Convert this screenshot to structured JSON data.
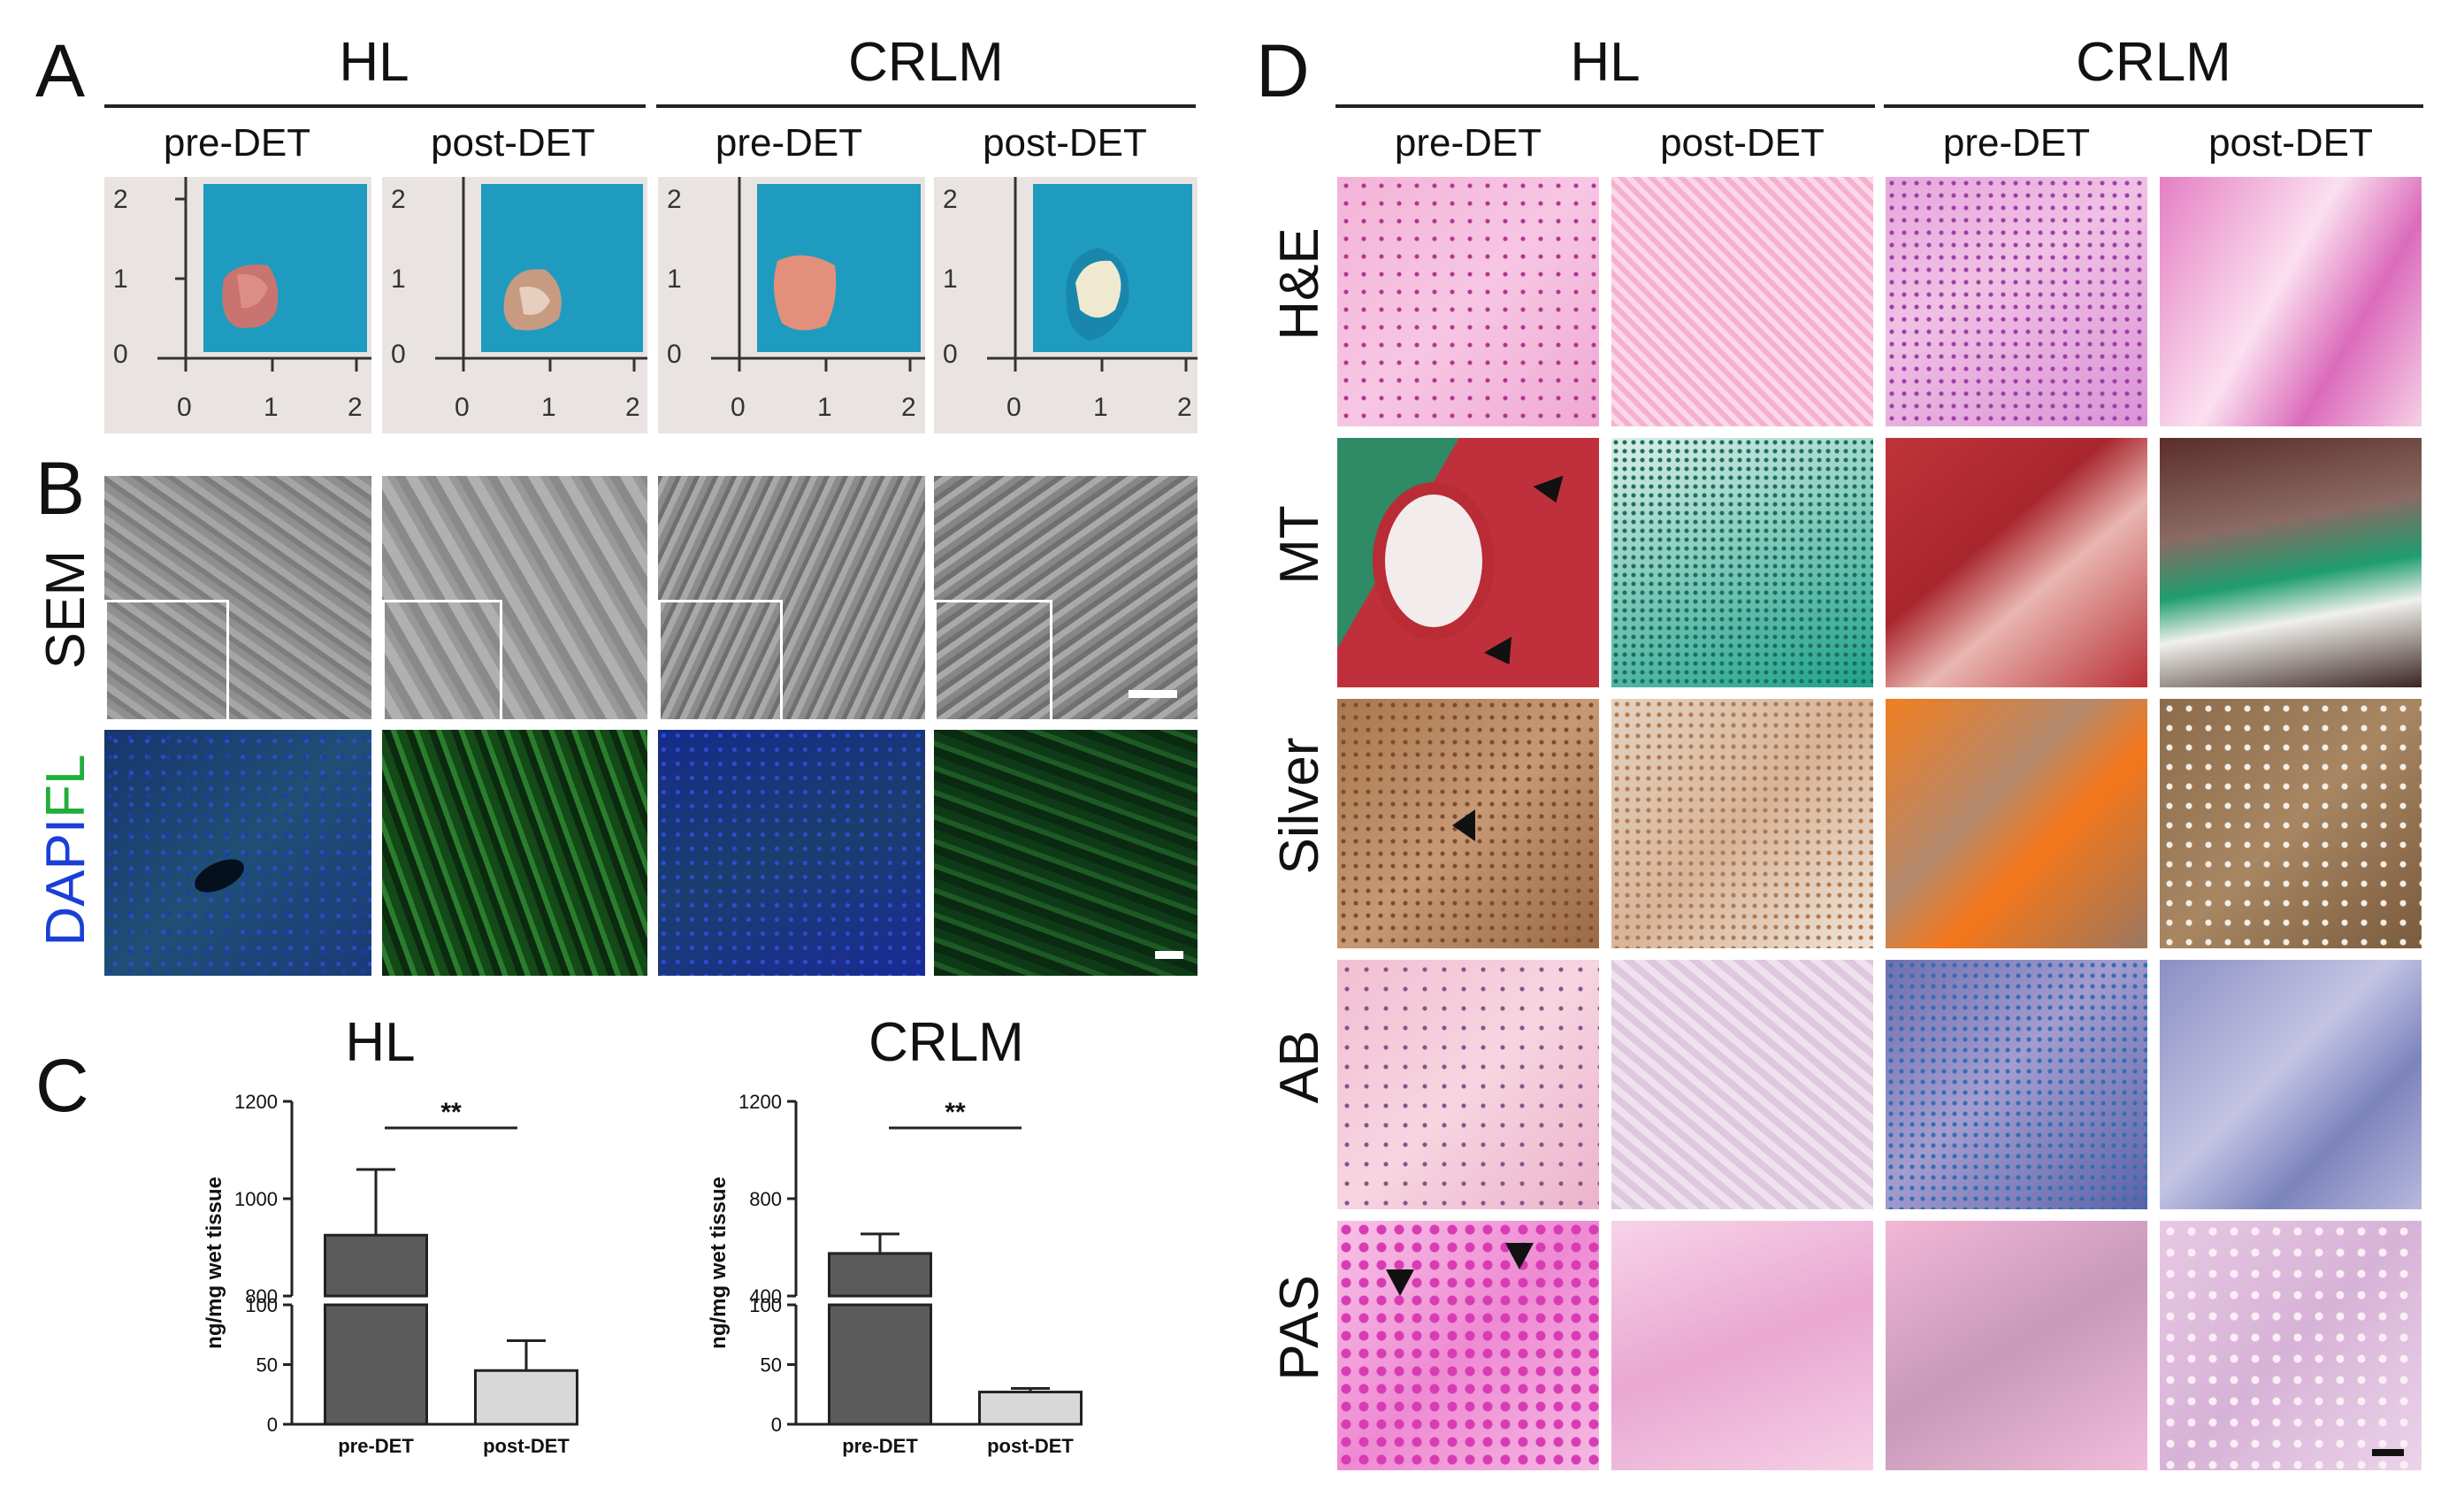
{
  "figure": {
    "panels": {
      "A": "A",
      "B": "B",
      "C": "C",
      "D": "D"
    },
    "groups": {
      "hl": "HL",
      "crlm": "CRLM"
    },
    "conditions": {
      "pre": "pre-DET",
      "post": "post-DET"
    },
    "panel_b_rows": {
      "sem": "SEM",
      "dapi": "DAPI",
      "fl": "FL"
    },
    "panel_d_rows": [
      "H&E",
      "MT",
      "Silver",
      "AB",
      "PAS"
    ],
    "ruler_ticks": [
      "0",
      "1",
      "2"
    ],
    "colors": {
      "text": "#111111",
      "dapi_label": "#1a3fd6",
      "fl_label": "#1fae3a",
      "bar_dark": "#5b5b5b",
      "bar_light": "#d8d8d8"
    }
  },
  "chart_data": [
    {
      "type": "bar",
      "title": "HL",
      "ylabel": "ng/mg wet tissue",
      "categories": [
        "pre-DET",
        "post-DET"
      ],
      "values": [
        925,
        45
      ],
      "errors": [
        135,
        25
      ],
      "axis_broken": true,
      "ylim_lower": [
        0,
        100
      ],
      "ylim_upper": [
        800,
        1200
      ],
      "yticks_lower": [
        "0",
        "50",
        "100"
      ],
      "yticks_upper": [
        "800",
        "1000",
        "1200"
      ],
      "significance": "**"
    },
    {
      "type": "bar",
      "title": "CRLM",
      "ylabel": "ng/mg wet tissue",
      "categories": [
        "pre-DET",
        "post-DET"
      ],
      "values": [
        575,
        27
      ],
      "errors": [
        80,
        3
      ],
      "axis_broken": true,
      "ylim_lower": [
        0,
        100
      ],
      "ylim_upper": [
        400,
        1200
      ],
      "yticks_lower": [
        "0",
        "50",
        "100"
      ],
      "yticks_upper": [
        "400",
        "800",
        "1200"
      ],
      "significance": "**"
    }
  ]
}
